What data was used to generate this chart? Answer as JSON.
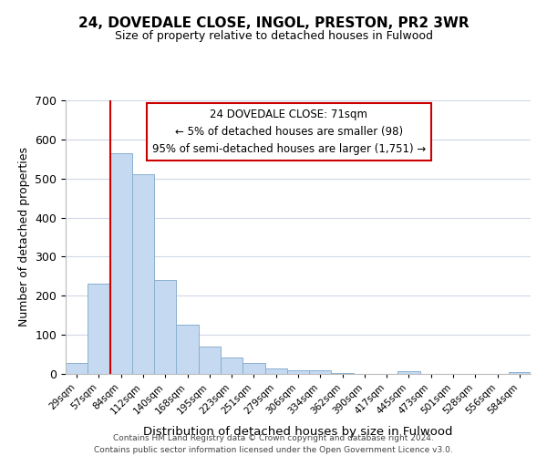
{
  "title": "24, DOVEDALE CLOSE, INGOL, PRESTON, PR2 3WR",
  "subtitle": "Size of property relative to detached houses in Fulwood",
  "xlabel": "Distribution of detached houses by size in Fulwood",
  "ylabel": "Number of detached properties",
  "bar_color": "#c5d9f0",
  "bar_edge_color": "#8ab0d0",
  "categories": [
    "29sqm",
    "57sqm",
    "84sqm",
    "112sqm",
    "140sqm",
    "168sqm",
    "195sqm",
    "223sqm",
    "251sqm",
    "279sqm",
    "306sqm",
    "334sqm",
    "362sqm",
    "390sqm",
    "417sqm",
    "445sqm",
    "473sqm",
    "501sqm",
    "528sqm",
    "556sqm",
    "584sqm"
  ],
  "values": [
    28,
    230,
    565,
    510,
    240,
    127,
    70,
    42,
    27,
    13,
    10,
    10,
    2,
    0,
    0,
    8,
    0,
    0,
    0,
    0,
    5
  ],
  "ylim": [
    0,
    700
  ],
  "yticks": [
    0,
    100,
    200,
    300,
    400,
    500,
    600,
    700
  ],
  "marker_line_color": "#cc0000",
  "annotation_title": "24 DOVEDALE CLOSE: 71sqm",
  "annotation_line1": "← 5% of detached houses are smaller (98)",
  "annotation_line2": "95% of semi-detached houses are larger (1,751) →",
  "annotation_box_color": "#ffffff",
  "annotation_box_edge_color": "#cc0000",
  "footer_line1": "Contains HM Land Registry data © Crown copyright and database right 2024.",
  "footer_line2": "Contains public sector information licensed under the Open Government Licence v3.0.",
  "background_color": "#ffffff",
  "grid_color": "#d0d8e8"
}
